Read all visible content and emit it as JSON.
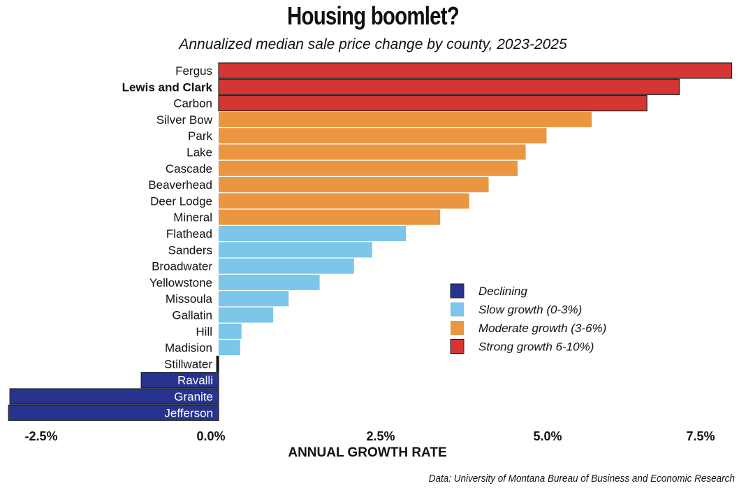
{
  "chart_data": {
    "type": "bar",
    "orientation": "horizontal",
    "title": "Housing boomlet?",
    "subtitle": "Annualized median sale price change by county, 2023-2025",
    "xlabel": "ANNUAL GROWTH RATE",
    "ylabel": "",
    "xlim": [
      -3.15,
      7.7
    ],
    "xticks": [
      -2.5,
      0.0,
      2.5,
      5.0,
      7.5
    ],
    "xtick_labels": [
      "-2.5%",
      "0.0%",
      "2.5%",
      "5.0%",
      "7.5%"
    ],
    "grid": false,
    "legend_position": "right-middle",
    "legend": [
      {
        "key": "declining",
        "label": "Declining",
        "color": "#27348f"
      },
      {
        "key": "slow",
        "label": "Slow growth (0-3%)",
        "color": "#7cc6ea"
      },
      {
        "key": "moderate",
        "label": "Moderate growth (3-6%)",
        "color": "#ea9641"
      },
      {
        "key": "strong",
        "label": "Strong growth 6-10%)",
        "color": "#d63633"
      }
    ],
    "highlighted_category": "Lewis and Clark",
    "categories": [
      "Fergus",
      "Lewis and Clark",
      "Carbon",
      "Silver Bow",
      "Park",
      "Lake",
      "Cascade",
      "Beaverhead",
      "Deer Lodge",
      "Mineral",
      "Flathead",
      "Sanders",
      "Broadwater",
      "Yellowstone",
      "Missoula",
      "Gallatin",
      "Hill",
      "Madision",
      "Stillwater",
      "Ravalli",
      "Granite",
      "Jefferson"
    ],
    "values": [
      7.62,
      6.84,
      6.36,
      5.54,
      4.87,
      4.56,
      4.44,
      4.01,
      3.72,
      3.29,
      2.78,
      2.28,
      2.01,
      1.5,
      1.04,
      0.81,
      0.34,
      0.32,
      -0.03,
      -1.15,
      -3.1,
      -3.12
    ],
    "groups": [
      "strong",
      "strong",
      "strong",
      "moderate",
      "moderate",
      "moderate",
      "moderate",
      "moderate",
      "moderate",
      "moderate",
      "slow",
      "slow",
      "slow",
      "slow",
      "slow",
      "slow",
      "slow",
      "slow",
      "declining",
      "declining",
      "declining",
      "declining"
    ]
  },
  "source": "Data: University of Montana Bureau of Business and Economic Research"
}
